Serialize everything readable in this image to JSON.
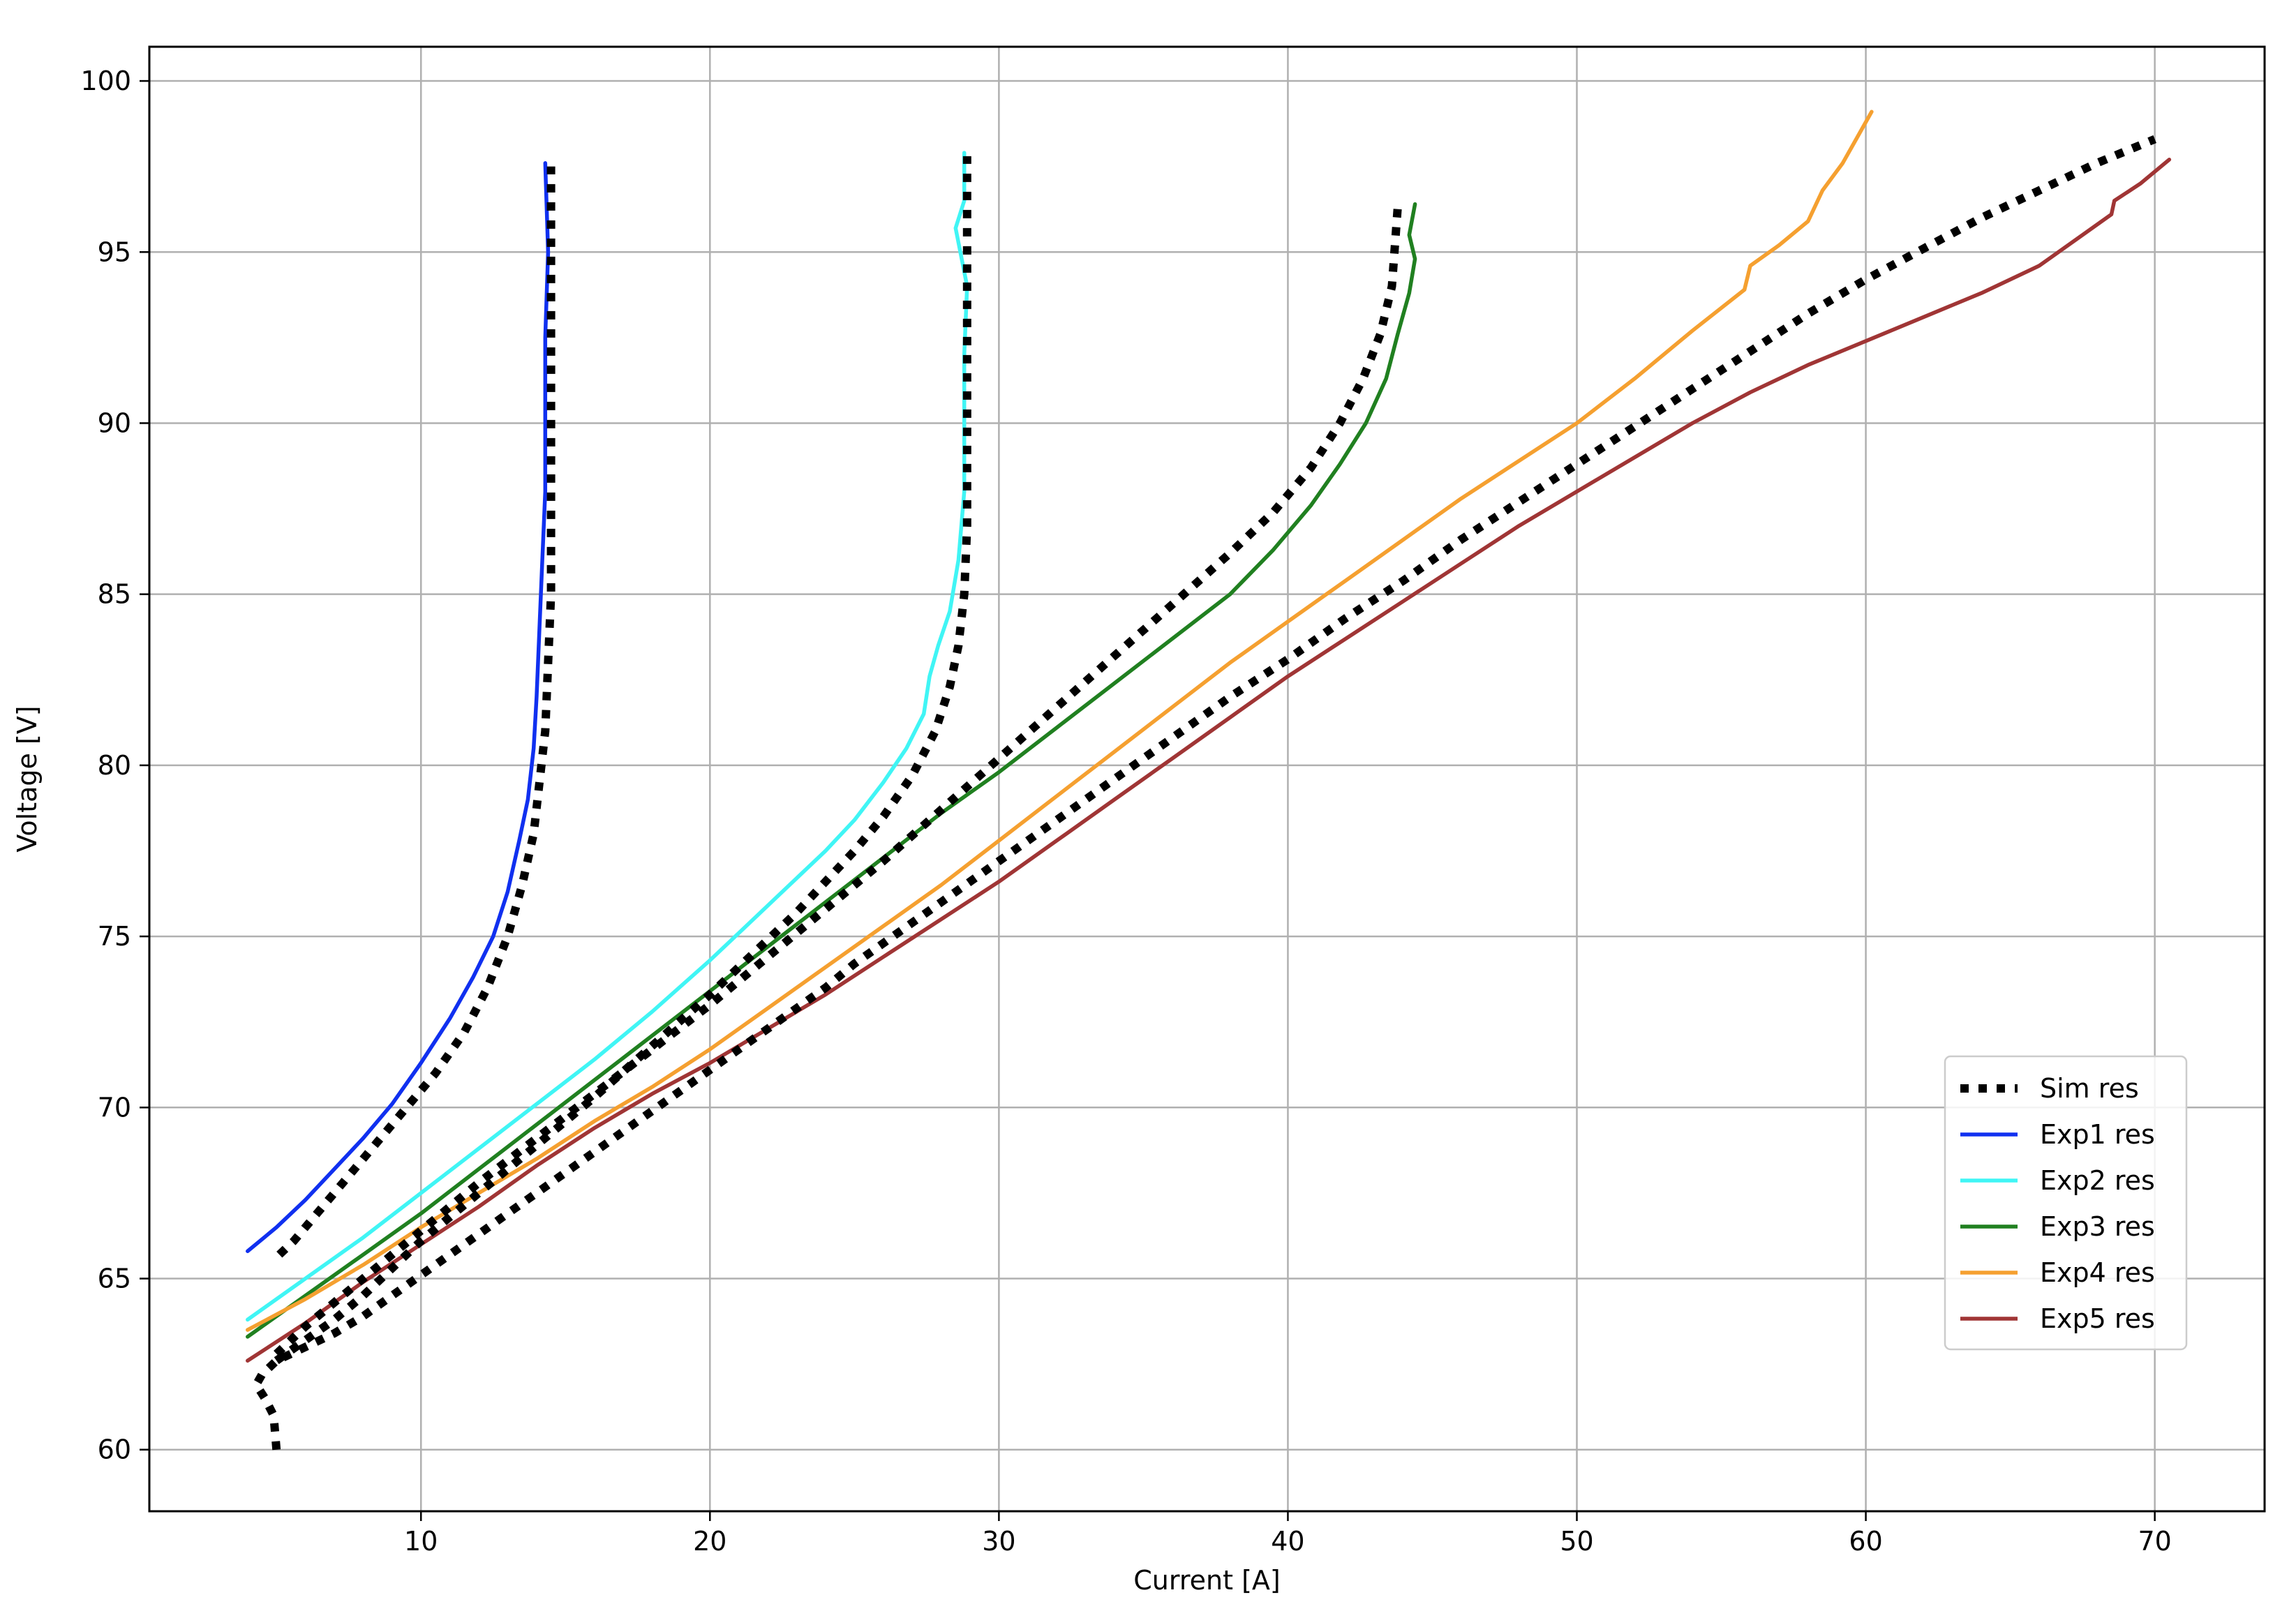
{
  "chart_data": {
    "type": "line",
    "title": "",
    "xlabel": "Current [A]",
    "ylabel": "Voltage [V]",
    "xlim": [
      0.6,
      73.8
    ],
    "ylim": [
      58.2,
      101.0
    ],
    "xticks": [
      10,
      20,
      30,
      40,
      50,
      60,
      70
    ],
    "yticks": [
      60,
      65,
      70,
      75,
      80,
      85,
      90,
      95,
      100
    ],
    "grid": true,
    "legend_position": "lower-right",
    "series": [
      {
        "name": "Sim res",
        "color": "#000000",
        "style": "dotted",
        "segments": [
          [
            [
              5.0,
              60.0
            ],
            [
              4.9,
              61.0
            ],
            [
              4.6,
              61.5
            ],
            [
              4.3,
              61.9
            ],
            [
              4.5,
              62.2
            ],
            [
              5.0,
              62.6
            ],
            [
              6.0,
              63.0
            ],
            [
              7.0,
              63.4
            ],
            [
              8.0,
              63.9
            ],
            [
              9.0,
              64.5
            ],
            [
              10.0,
              65.1
            ],
            [
              11.0,
              65.7
            ],
            [
              12.0,
              66.3
            ],
            [
              13.0,
              66.9
            ],
            [
              14.0,
              67.5
            ],
            [
              15.0,
              68.1
            ],
            [
              16.0,
              68.7
            ],
            [
              17.0,
              69.3
            ],
            [
              18.0,
              69.9
            ],
            [
              19.0,
              70.5
            ],
            [
              20.0,
              71.1
            ],
            [
              21.0,
              71.7
            ],
            [
              22.0,
              72.3
            ],
            [
              23.0,
              72.9
            ],
            [
              24.0,
              73.5
            ],
            [
              25.0,
              74.2
            ],
            [
              26.0,
              74.8
            ],
            [
              27.0,
              75.4
            ],
            [
              28.0,
              76.0
            ],
            [
              29.0,
              76.6
            ],
            [
              30.0,
              77.2
            ],
            [
              32.0,
              78.4
            ],
            [
              34.0,
              79.6
            ],
            [
              36.0,
              80.8
            ],
            [
              38.0,
              82.0
            ],
            [
              40.0,
              83.1
            ],
            [
              42.0,
              84.3
            ],
            [
              44.0,
              85.4
            ],
            [
              46.0,
              86.6
            ],
            [
              48.0,
              87.7
            ],
            [
              50.0,
              88.8
            ],
            [
              52.0,
              89.9
            ],
            [
              54.0,
              91.0
            ],
            [
              56.0,
              92.1
            ],
            [
              58.0,
              93.2
            ],
            [
              60.0,
              94.2
            ],
            [
              62.0,
              95.1
            ],
            [
              64.0,
              96.0
            ],
            [
              66.0,
              96.8
            ],
            [
              68.0,
              97.6
            ],
            [
              70.0,
              98.3
            ]
          ],
          [
            [
              5.1,
              65.7
            ],
            [
              5.6,
              66.1
            ],
            [
              6.5,
              67.0
            ],
            [
              7.5,
              68.0
            ],
            [
              8.5,
              69.0
            ],
            [
              9.5,
              70.0
            ],
            [
              10.5,
              71.0
            ],
            [
              11.5,
              72.2
            ],
            [
              12.3,
              73.5
            ],
            [
              13.0,
              75.0
            ],
            [
              13.5,
              76.5
            ],
            [
              13.9,
              78.0
            ],
            [
              14.1,
              79.5
            ],
            [
              14.3,
              81.0
            ],
            [
              14.4,
              83.0
            ],
            [
              14.5,
              85.0
            ],
            [
              14.5,
              87.0
            ],
            [
              14.5,
              89.0
            ],
            [
              14.5,
              91.0
            ],
            [
              14.5,
              93.0
            ],
            [
              14.5,
              95.0
            ],
            [
              14.5,
              97.5
            ]
          ],
          [
            [
              5.0,
              62.6
            ],
            [
              6.0,
              63.2
            ],
            [
              7.0,
              63.8
            ],
            [
              8.0,
              64.5
            ],
            [
              9.0,
              65.3
            ],
            [
              10.0,
              66.1
            ],
            [
              12.0,
              67.5
            ],
            [
              14.0,
              68.9
            ],
            [
              16.0,
              70.3
            ],
            [
              18.0,
              71.8
            ],
            [
              20.0,
              73.3
            ],
            [
              21.0,
              74.1
            ],
            [
              22.0,
              74.9
            ],
            [
              23.0,
              75.7
            ],
            [
              24.0,
              76.6
            ],
            [
              25.0,
              77.5
            ],
            [
              26.0,
              78.5
            ],
            [
              27.0,
              79.7
            ],
            [
              27.8,
              81.0
            ],
            [
              28.3,
              82.3
            ],
            [
              28.6,
              83.5
            ],
            [
              28.8,
              85.0
            ],
            [
              28.9,
              87.0
            ],
            [
              28.9,
              89.0
            ],
            [
              28.9,
              91.0
            ],
            [
              28.9,
              93.0
            ],
            [
              28.9,
              95.0
            ],
            [
              28.9,
              97.8
            ]
          ],
          [
            [
              5.0,
              62.8
            ],
            [
              6.0,
              63.6
            ],
            [
              8.0,
              65.0
            ],
            [
              10.0,
              66.4
            ],
            [
              12.0,
              67.8
            ],
            [
              14.0,
              69.1
            ],
            [
              16.0,
              70.4
            ],
            [
              18.0,
              71.7
            ],
            [
              20.0,
              73.0
            ],
            [
              22.0,
              74.4
            ],
            [
              24.0,
              75.8
            ],
            [
              26.0,
              77.2
            ],
            [
              28.0,
              78.7
            ],
            [
              30.0,
              80.2
            ],
            [
              32.0,
              81.7
            ],
            [
              34.0,
              83.2
            ],
            [
              36.0,
              84.7
            ],
            [
              38.0,
              86.2
            ],
            [
              39.5,
              87.4
            ],
            [
              40.8,
              88.7
            ],
            [
              41.8,
              90.0
            ],
            [
              42.6,
              91.3
            ],
            [
              43.2,
              92.6
            ],
            [
              43.6,
              94.0
            ],
            [
              43.8,
              96.3
            ]
          ]
        ]
      },
      {
        "name": "Exp1 res",
        "color": "#1030f0",
        "style": "solid",
        "points": [
          [
            4.0,
            65.8
          ],
          [
            5.0,
            66.5
          ],
          [
            6.0,
            67.3
          ],
          [
            7.0,
            68.2
          ],
          [
            8.0,
            69.1
          ],
          [
            9.0,
            70.1
          ],
          [
            10.0,
            71.3
          ],
          [
            11.0,
            72.6
          ],
          [
            11.8,
            73.8
          ],
          [
            12.5,
            75.0
          ],
          [
            13.0,
            76.3
          ],
          [
            13.4,
            77.8
          ],
          [
            13.7,
            79.0
          ],
          [
            13.9,
            80.5
          ],
          [
            14.0,
            82.0
          ],
          [
            14.1,
            84.0
          ],
          [
            14.2,
            86.0
          ],
          [
            14.3,
            88.0
          ],
          [
            14.3,
            90.0
          ],
          [
            14.3,
            92.5
          ],
          [
            14.4,
            95.0
          ],
          [
            14.3,
            97.6
          ]
        ]
      },
      {
        "name": "Exp2 res",
        "color": "#40f5f5",
        "style": "solid",
        "points": [
          [
            4.0,
            63.8
          ],
          [
            6.0,
            65.0
          ],
          [
            8.0,
            66.2
          ],
          [
            10.0,
            67.5
          ],
          [
            12.0,
            68.8
          ],
          [
            14.0,
            70.1
          ],
          [
            16.0,
            71.4
          ],
          [
            18.0,
            72.8
          ],
          [
            20.0,
            74.3
          ],
          [
            21.0,
            75.1
          ],
          [
            22.0,
            75.9
          ],
          [
            23.0,
            76.7
          ],
          [
            24.0,
            77.5
          ],
          [
            25.0,
            78.4
          ],
          [
            26.0,
            79.5
          ],
          [
            26.8,
            80.5
          ],
          [
            27.4,
            81.5
          ],
          [
            27.6,
            82.6
          ],
          [
            27.9,
            83.5
          ],
          [
            28.3,
            84.5
          ],
          [
            28.6,
            86.0
          ],
          [
            28.8,
            88.0
          ],
          [
            28.8,
            90.0
          ],
          [
            28.8,
            92.0
          ],
          [
            28.9,
            94.0
          ],
          [
            28.5,
            95.7
          ],
          [
            28.8,
            96.5
          ],
          [
            28.8,
            97.9
          ]
        ]
      },
      {
        "name": "Exp3 res",
        "color": "#208020",
        "style": "solid",
        "points": [
          [
            4.0,
            63.3
          ],
          [
            6.0,
            64.5
          ],
          [
            8.0,
            65.7
          ],
          [
            10.0,
            66.9
          ],
          [
            12.0,
            68.2
          ],
          [
            14.0,
            69.5
          ],
          [
            16.0,
            70.8
          ],
          [
            18.0,
            72.1
          ],
          [
            20.0,
            73.4
          ],
          [
            22.0,
            74.7
          ],
          [
            24.0,
            76.0
          ],
          [
            26.0,
            77.3
          ],
          [
            28.0,
            78.6
          ],
          [
            30.0,
            79.8
          ],
          [
            32.0,
            81.1
          ],
          [
            34.0,
            82.4
          ],
          [
            36.0,
            83.7
          ],
          [
            38.0,
            85.0
          ],
          [
            39.5,
            86.3
          ],
          [
            40.8,
            87.6
          ],
          [
            41.8,
            88.8
          ],
          [
            42.7,
            90.0
          ],
          [
            43.4,
            91.3
          ],
          [
            43.8,
            92.6
          ],
          [
            44.2,
            93.8
          ],
          [
            44.4,
            94.8
          ],
          [
            44.2,
            95.5
          ],
          [
            44.4,
            96.4
          ]
        ]
      },
      {
        "name": "Exp4 res",
        "color": "#f5a030",
        "style": "solid",
        "points": [
          [
            4.0,
            63.5
          ],
          [
            6.0,
            64.4
          ],
          [
            8.0,
            65.4
          ],
          [
            10.0,
            66.5
          ],
          [
            12.0,
            67.5
          ],
          [
            14.0,
            68.5
          ],
          [
            16.0,
            69.6
          ],
          [
            18.0,
            70.6
          ],
          [
            20.0,
            71.7
          ],
          [
            22.0,
            72.9
          ],
          [
            24.0,
            74.1
          ],
          [
            26.0,
            75.3
          ],
          [
            28.0,
            76.5
          ],
          [
            30.0,
            77.8
          ],
          [
            32.0,
            79.1
          ],
          [
            34.0,
            80.4
          ],
          [
            36.0,
            81.7
          ],
          [
            38.0,
            83.0
          ],
          [
            40.0,
            84.2
          ],
          [
            42.0,
            85.4
          ],
          [
            44.0,
            86.6
          ],
          [
            46.0,
            87.8
          ],
          [
            48.0,
            88.9
          ],
          [
            50.0,
            90.0
          ],
          [
            52.0,
            91.3
          ],
          [
            54.0,
            92.7
          ],
          [
            55.8,
            93.9
          ],
          [
            56.0,
            94.6
          ],
          [
            57.0,
            95.2
          ],
          [
            58.0,
            95.9
          ],
          [
            58.5,
            96.8
          ],
          [
            59.2,
            97.6
          ],
          [
            60.2,
            99.1
          ]
        ]
      },
      {
        "name": "Exp5 res",
        "color": "#a03535",
        "style": "solid",
        "points": [
          [
            4.0,
            62.6
          ],
          [
            6.0,
            63.7
          ],
          [
            8.0,
            64.9
          ],
          [
            10.0,
            66.0
          ],
          [
            12.0,
            67.1
          ],
          [
            14.0,
            68.3
          ],
          [
            16.0,
            69.4
          ],
          [
            18.0,
            70.4
          ],
          [
            20.0,
            71.3
          ],
          [
            22.0,
            72.3
          ],
          [
            24.0,
            73.3
          ],
          [
            26.0,
            74.4
          ],
          [
            28.0,
            75.5
          ],
          [
            30.0,
            76.6
          ],
          [
            32.0,
            77.8
          ],
          [
            34.0,
            79.0
          ],
          [
            36.0,
            80.2
          ],
          [
            38.0,
            81.4
          ],
          [
            40.0,
            82.6
          ],
          [
            42.0,
            83.7
          ],
          [
            44.0,
            84.8
          ],
          [
            46.0,
            85.9
          ],
          [
            48.0,
            87.0
          ],
          [
            50.0,
            88.0
          ],
          [
            52.0,
            89.0
          ],
          [
            54.0,
            90.0
          ],
          [
            56.0,
            90.9
          ],
          [
            58.0,
            91.7
          ],
          [
            60.0,
            92.4
          ],
          [
            62.0,
            93.1
          ],
          [
            64.0,
            93.8
          ],
          [
            66.0,
            94.6
          ],
          [
            67.5,
            95.5
          ],
          [
            68.5,
            96.1
          ],
          [
            68.6,
            96.5
          ],
          [
            69.5,
            97.0
          ],
          [
            70.5,
            97.7
          ]
        ]
      }
    ]
  }
}
